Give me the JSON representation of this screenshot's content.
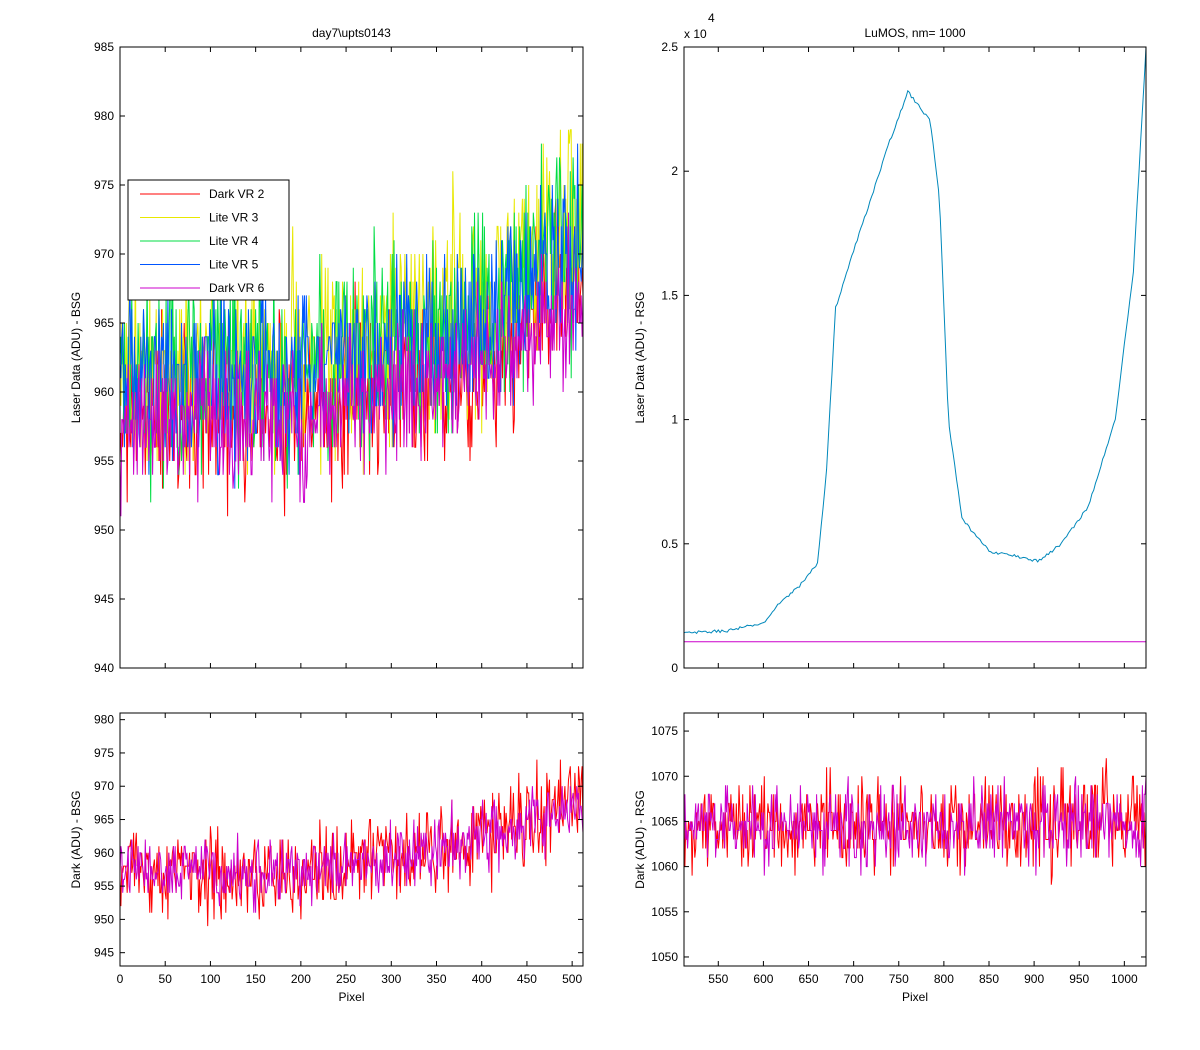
{
  "figure": {
    "colors": {
      "dark_vr2": "#ff0000",
      "lite_vr3": "#e8e800",
      "lite_vr4": "#00dd44",
      "lite_vr5": "#0055ff",
      "dark_vr6": "#cc00cc",
      "single_trace": "#0088bb",
      "flat_line": "#cc00cc"
    }
  },
  "chart_data": [
    {
      "id": "top_left",
      "type": "line",
      "title": "day7\\upts0143",
      "xlabel": "",
      "ylabel": "Laser Data (ADU) - BSG",
      "xlim": [
        0,
        512
      ],
      "ylim": [
        940,
        985
      ],
      "yticks": [
        940,
        945,
        950,
        955,
        960,
        965,
        970,
        975,
        980,
        985
      ],
      "xticks": [
        0,
        50,
        100,
        150,
        200,
        250,
        300,
        350,
        400,
        450,
        500
      ],
      "show_xticklabels": false,
      "legend": {
        "placement": "upper-left",
        "entries": [
          "Dark VR 2",
          "Lite VR 3",
          "Lite VR 4",
          "Lite VR 5",
          "Dark VR 6"
        ]
      },
      "series": [
        {
          "name": "Dark VR 2",
          "color": "#ff0000",
          "trend": [
            [
              0,
              958
            ],
            [
              200,
              958
            ],
            [
              400,
              962
            ],
            [
              512,
              968
            ]
          ],
          "amplitude": 5
        },
        {
          "name": "Lite VR 3",
          "color": "#e8e800",
          "trend": [
            [
              0,
              962
            ],
            [
              200,
              962
            ],
            [
              400,
              966
            ],
            [
              512,
              972
            ]
          ],
          "amplitude": 6
        },
        {
          "name": "Lite VR 4",
          "color": "#00dd44",
          "trend": [
            [
              0,
              962
            ],
            [
              200,
              962
            ],
            [
              400,
              966
            ],
            [
              512,
              972
            ]
          ],
          "amplitude": 6
        },
        {
          "name": "Lite VR 5",
          "color": "#0055ff",
          "trend": [
            [
              0,
              961
            ],
            [
              200,
              961
            ],
            [
              400,
              965
            ],
            [
              512,
              971
            ]
          ],
          "amplitude": 5
        },
        {
          "name": "Dark VR 6",
          "color": "#cc00cc",
          "trend": [
            [
              0,
              958
            ],
            [
              200,
              958
            ],
            [
              400,
              962
            ],
            [
              512,
              967
            ]
          ],
          "amplitude": 4
        }
      ]
    },
    {
      "id": "top_right",
      "type": "line",
      "title": "LuMOS, nm= 1000",
      "xlabel": "",
      "ylabel": "Laser Data (ADU) - RSG",
      "xlim": [
        512,
        1024
      ],
      "ylim": [
        0,
        25000
      ],
      "yticks": [
        0,
        5000,
        10000,
        15000,
        20000,
        25000
      ],
      "ytick_labels": [
        "0",
        "0.5",
        "1",
        "1.5",
        "2",
        "2.5"
      ],
      "y_multiplier": "x 10",
      "y_exponent": "4",
      "xticks": [
        550,
        600,
        650,
        700,
        750,
        800,
        850,
        900,
        950,
        1000
      ],
      "show_xticklabels": false,
      "series": [
        {
          "name": "",
          "color": "#0088bb",
          "points": [
            [
              512,
              1400
            ],
            [
              560,
              1500
            ],
            [
              600,
              1800
            ],
            [
              620,
              2700
            ],
            [
              640,
              3300
            ],
            [
              660,
              4200
            ],
            [
              670,
              8000
            ],
            [
              680,
              14500
            ],
            [
              700,
              16800
            ],
            [
              720,
              19000
            ],
            [
              740,
              21200
            ],
            [
              760,
              23200
            ],
            [
              775,
              22500
            ],
            [
              785,
              22000
            ],
            [
              795,
              19000
            ],
            [
              805,
              10000
            ],
            [
              820,
              6000
            ],
            [
              850,
              4700
            ],
            [
              880,
              4500
            ],
            [
              905,
              4300
            ],
            [
              930,
              5000
            ],
            [
              960,
              6500
            ],
            [
              990,
              10000
            ],
            [
              1010,
              16000
            ],
            [
              1024,
              25000
            ]
          ]
        },
        {
          "name": "",
          "color": "#cc00cc",
          "points": [
            [
              512,
              1060
            ],
            [
              1024,
              1060
            ]
          ]
        }
      ]
    },
    {
      "id": "bottom_left",
      "type": "line",
      "title": "",
      "xlabel": "Pixel",
      "ylabel": "Dark (ADU) - BSG",
      "xlim": [
        0,
        512
      ],
      "ylim": [
        943,
        981
      ],
      "yticks": [
        945,
        950,
        955,
        960,
        965,
        970,
        975,
        980
      ],
      "xticks": [
        0,
        50,
        100,
        150,
        200,
        250,
        300,
        350,
        400,
        450,
        500
      ],
      "show_xticklabels": true,
      "series": [
        {
          "name": "Dark VR 2",
          "color": "#ff0000",
          "trend": [
            [
              0,
              957
            ],
            [
              200,
              957
            ],
            [
              400,
              962
            ],
            [
              512,
              968
            ]
          ],
          "amplitude": 5
        },
        {
          "name": "Dark VR 6",
          "color": "#cc00cc",
          "trend": [
            [
              0,
              957
            ],
            [
              200,
              957
            ],
            [
              400,
              962
            ],
            [
              512,
              968
            ]
          ],
          "amplitude": 4
        }
      ]
    },
    {
      "id": "bottom_right",
      "type": "line",
      "title": "",
      "xlabel": "Pixel",
      "ylabel": "Dark (ADU) - RSG",
      "xlim": [
        512,
        1024
      ],
      "ylim": [
        1049,
        1077
      ],
      "yticks": [
        1050,
        1055,
        1060,
        1065,
        1070,
        1075
      ],
      "xticks": [
        550,
        600,
        650,
        700,
        750,
        800,
        850,
        900,
        950,
        1000
      ],
      "show_xticklabels": true,
      "series": [
        {
          "name": "Dark VR 2",
          "color": "#ff0000",
          "trend": [
            [
              512,
              1064
            ],
            [
              1024,
              1065
            ]
          ],
          "amplitude": 4
        },
        {
          "name": "Dark VR 6",
          "color": "#cc00cc",
          "trend": [
            [
              512,
              1064
            ],
            [
              1024,
              1065
            ]
          ],
          "amplitude": 3.5
        }
      ]
    }
  ]
}
